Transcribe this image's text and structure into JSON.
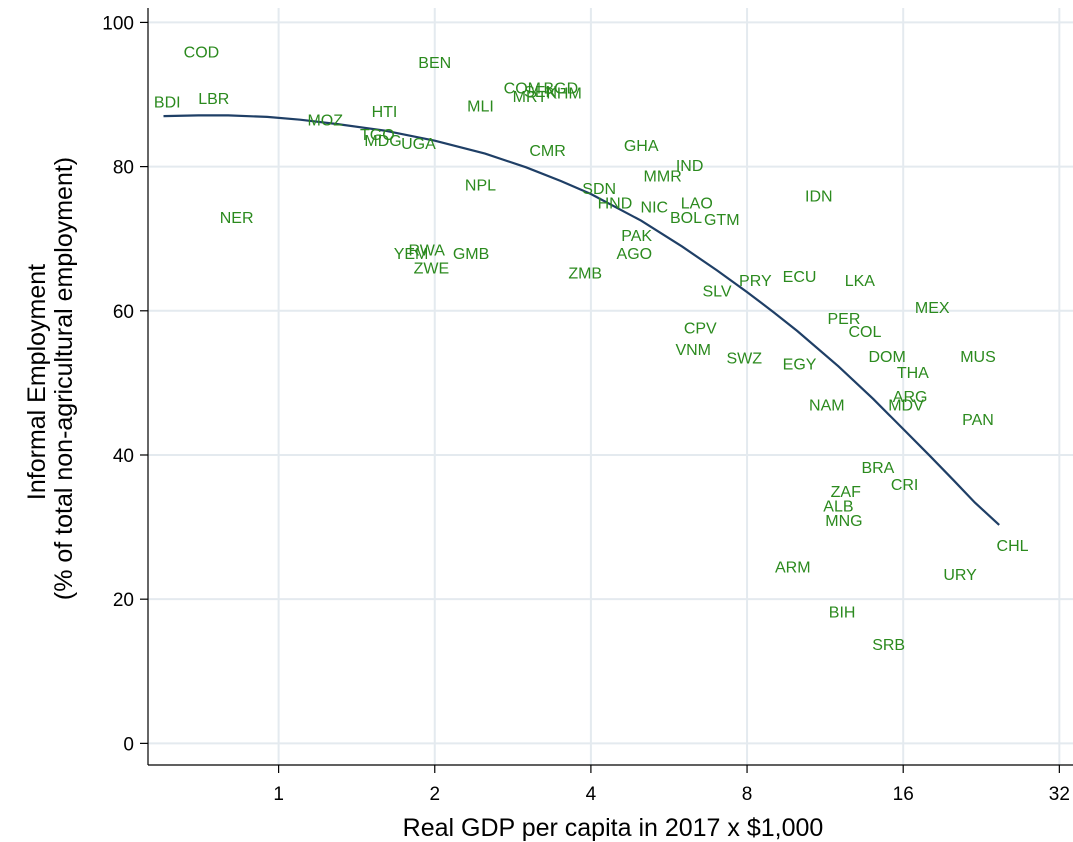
{
  "chart_data": {
    "type": "scatter",
    "title": "",
    "xlabel": "Real GDP per capita in 2017 x $1,000",
    "ylabel_lines": [
      "Informal Employment",
      "(% of total non-agricultural employment)"
    ],
    "x_scale": "log2",
    "xlim": [
      0.56,
      34
    ],
    "ylim": [
      -3,
      102
    ],
    "x_ticks": [
      1,
      2,
      4,
      8,
      16,
      32
    ],
    "x_tick_labels": [
      "1",
      "2",
      "4",
      "8",
      "16",
      "32"
    ],
    "y_ticks": [
      0,
      20,
      40,
      60,
      80,
      100
    ],
    "y_tick_labels": [
      "0",
      "20",
      "40",
      "60",
      "80",
      "100"
    ],
    "grid": true,
    "label_color": "#2b8a1e",
    "fit_color": "#1f3f66",
    "points": [
      {
        "label": "COD",
        "x": 0.71,
        "y": 96.0
      },
      {
        "label": "BDI",
        "x": 0.61,
        "y": 89.0
      },
      {
        "label": "LBR",
        "x": 0.75,
        "y": 89.5
      },
      {
        "label": "BEN",
        "x": 2.0,
        "y": 94.5
      },
      {
        "label": "COM",
        "x": 2.95,
        "y": 91.0
      },
      {
        "label": "BGD",
        "x": 3.5,
        "y": 91.0
      },
      {
        "label": "SEN",
        "x": 3.2,
        "y": 90.5
      },
      {
        "label": "KHM",
        "x": 3.55,
        "y": 90.3
      },
      {
        "label": "MRT",
        "x": 3.05,
        "y": 89.8
      },
      {
        "label": "MLI",
        "x": 2.45,
        "y": 88.5
      },
      {
        "label": "HTI",
        "x": 1.6,
        "y": 87.7
      },
      {
        "label": "MOZ",
        "x": 1.23,
        "y": 86.5
      },
      {
        "label": "TGO",
        "x": 1.55,
        "y": 84.5
      },
      {
        "label": "MDG",
        "x": 1.59,
        "y": 83.7
      },
      {
        "label": "UGA",
        "x": 1.86,
        "y": 83.3
      },
      {
        "label": "CMR",
        "x": 3.3,
        "y": 82.3
      },
      {
        "label": "GHA",
        "x": 5.0,
        "y": 83.0
      },
      {
        "label": "IND",
        "x": 6.2,
        "y": 80.2
      },
      {
        "label": "MMR",
        "x": 5.5,
        "y": 78.8
      },
      {
        "label": "NPL",
        "x": 2.45,
        "y": 77.5
      },
      {
        "label": "SDN",
        "x": 4.15,
        "y": 77.0
      },
      {
        "label": "HND",
        "x": 4.45,
        "y": 75.0
      },
      {
        "label": "NIC",
        "x": 5.3,
        "y": 74.5
      },
      {
        "label": "LAO",
        "x": 6.4,
        "y": 75.0
      },
      {
        "label": "IDN",
        "x": 11.0,
        "y": 76.0
      },
      {
        "label": "BOL",
        "x": 6.1,
        "y": 73.0
      },
      {
        "label": "GTM",
        "x": 7.15,
        "y": 72.7
      },
      {
        "label": "NER",
        "x": 0.83,
        "y": 73.0
      },
      {
        "label": "PAK",
        "x": 4.9,
        "y": 70.5
      },
      {
        "label": "YEM",
        "x": 1.8,
        "y": 68.0
      },
      {
        "label": "RWA",
        "x": 1.93,
        "y": 68.5
      },
      {
        "label": "GMB",
        "x": 2.35,
        "y": 68.0
      },
      {
        "label": "ZWE",
        "x": 1.97,
        "y": 66.0
      },
      {
        "label": "AGO",
        "x": 4.85,
        "y": 68.0
      },
      {
        "label": "ZMB",
        "x": 3.9,
        "y": 65.3
      },
      {
        "label": "PRY",
        "x": 8.3,
        "y": 64.3
      },
      {
        "label": "ECU",
        "x": 10.1,
        "y": 64.8
      },
      {
        "label": "LKA",
        "x": 13.2,
        "y": 64.3
      },
      {
        "label": "SLV",
        "x": 7.0,
        "y": 62.8
      },
      {
        "label": "MEX",
        "x": 18.2,
        "y": 60.5
      },
      {
        "label": "PER",
        "x": 12.3,
        "y": 59.0
      },
      {
        "label": "COL",
        "x": 13.5,
        "y": 57.2
      },
      {
        "label": "CPV",
        "x": 6.5,
        "y": 57.7
      },
      {
        "label": "VNM",
        "x": 6.3,
        "y": 54.7
      },
      {
        "label": "SWZ",
        "x": 7.9,
        "y": 53.5
      },
      {
        "label": "EGY",
        "x": 10.1,
        "y": 52.7
      },
      {
        "label": "DOM",
        "x": 14.9,
        "y": 53.7
      },
      {
        "label": "MUS",
        "x": 22.3,
        "y": 53.7
      },
      {
        "label": "THA",
        "x": 16.7,
        "y": 51.5
      },
      {
        "label": "ARG",
        "x": 16.5,
        "y": 48.2
      },
      {
        "label": "MDV",
        "x": 16.2,
        "y": 47.0
      },
      {
        "label": "NAM",
        "x": 11.4,
        "y": 47.0
      },
      {
        "label": "PAN",
        "x": 22.3,
        "y": 45.0
      },
      {
        "label": "BRA",
        "x": 14.3,
        "y": 38.3
      },
      {
        "label": "CRI",
        "x": 16.1,
        "y": 36.0
      },
      {
        "label": "ZAF",
        "x": 12.4,
        "y": 35.0
      },
      {
        "label": "ALB",
        "x": 12.0,
        "y": 33.0
      },
      {
        "label": "MNG",
        "x": 12.3,
        "y": 31.0
      },
      {
        "label": "CHL",
        "x": 26.0,
        "y": 27.5
      },
      {
        "label": "ARM",
        "x": 9.8,
        "y": 24.5
      },
      {
        "label": "URY",
        "x": 20.6,
        "y": 23.5
      },
      {
        "label": "BIH",
        "x": 12.2,
        "y": 18.3
      },
      {
        "label": "SRB",
        "x": 15.0,
        "y": 13.8
      }
    ],
    "fit_line": {
      "x": [
        0.6,
        0.7,
        0.8,
        0.95,
        1.1,
        1.3,
        1.6,
        2.0,
        2.5,
        3.0,
        3.5,
        4.0,
        5.0,
        6.0,
        7.0,
        8.0,
        9.0,
        10.0,
        12.0,
        14.0,
        16.0,
        18.0,
        20.0,
        22.0,
        24.5
      ],
      "y": [
        87.0,
        87.1,
        87.1,
        86.9,
        86.5,
        85.9,
        85.0,
        83.6,
        81.8,
        79.9,
        78.0,
        76.2,
        72.5,
        68.9,
        65.6,
        62.6,
        59.8,
        57.2,
        52.3,
        47.8,
        43.6,
        39.9,
        36.5,
        33.4,
        30.3
      ]
    }
  }
}
